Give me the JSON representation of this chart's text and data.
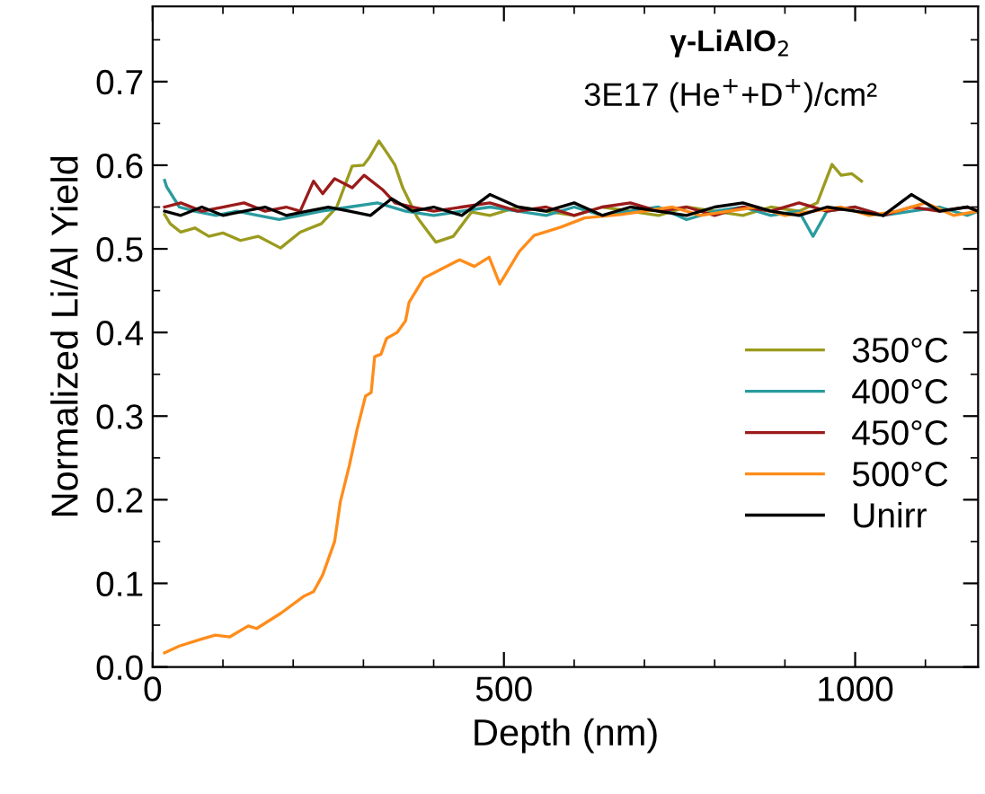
{
  "chart_data": {
    "type": "line",
    "title": "γ-LiAlO$_{2}$",
    "subtitle": "3E17 (He$^{+}$+D$^{+}$)/cm²",
    "xlabel": "Depth (nm)",
    "ylabel": "Normalized Li/Al Yield",
    "xlim": [
      0,
      1175
    ],
    "ylim": [
      0,
      0.79
    ],
    "xticks": [
      0,
      500,
      1000
    ],
    "yticks": [
      {
        "value": 0,
        "label": "0.0"
      },
      0.1,
      0.2,
      0.3,
      0.4,
      0.5,
      0.6,
      0.7
    ],
    "grid": false,
    "legend": "right",
    "marker": "none",
    "line_style": "solid",
    "series": [
      {
        "name": "350°C",
        "color": "#9b9b1f",
        "x": [
          17,
          25,
          40,
          60,
          80,
          100,
          125,
          150,
          182,
          210,
          240,
          262,
          284,
          300,
          309,
          322,
          335,
          345,
          356,
          377,
          403,
          428,
          454,
          480,
          520,
          560,
          600,
          640,
          680,
          720,
          760,
          800,
          840,
          880,
          920,
          946,
          967,
          980,
          995,
          1009
        ],
        "values": [
          0.541,
          0.53,
          0.52,
          0.525,
          0.515,
          0.519,
          0.51,
          0.515,
          0.501,
          0.52,
          0.53,
          0.55,
          0.599,
          0.6,
          0.61,
          0.629,
          0.613,
          0.6,
          0.573,
          0.537,
          0.508,
          0.515,
          0.544,
          0.54,
          0.55,
          0.545,
          0.54,
          0.55,
          0.545,
          0.54,
          0.55,
          0.545,
          0.54,
          0.55,
          0.545,
          0.555,
          0.601,
          0.588,
          0.59,
          0.581
        ]
      },
      {
        "name": "400°C",
        "color": "#2a9b9e",
        "x": [
          17,
          20,
          38,
          60,
          90,
          120,
          150,
          180,
          210,
          240,
          280,
          320,
          360,
          400,
          440,
          480,
          520,
          560,
          600,
          640,
          680,
          720,
          760,
          800,
          840,
          880,
          920,
          940,
          960,
          1000,
          1040,
          1080,
          1120,
          1160,
          1175
        ],
        "values": [
          0.582,
          0.574,
          0.55,
          0.545,
          0.54,
          0.545,
          0.54,
          0.535,
          0.54,
          0.545,
          0.55,
          0.555,
          0.545,
          0.54,
          0.545,
          0.55,
          0.545,
          0.54,
          0.55,
          0.54,
          0.545,
          0.55,
          0.535,
          0.545,
          0.55,
          0.54,
          0.545,
          0.515,
          0.545,
          0.55,
          0.54,
          0.545,
          0.55,
          0.54,
          0.545
        ]
      },
      {
        "name": "450°C",
        "color": "#9b1b1b",
        "x": [
          17,
          40,
          70,
          100,
          130,
          160,
          190,
          210,
          229,
          242,
          259,
          284,
          301,
          327,
          345,
          370,
          400,
          440,
          480,
          520,
          560,
          600,
          640,
          680,
          720,
          760,
          800,
          840,
          880,
          920,
          960,
          1000,
          1040,
          1080,
          1120,
          1160,
          1175
        ],
        "values": [
          0.55,
          0.555,
          0.545,
          0.55,
          0.555,
          0.545,
          0.55,
          0.545,
          0.581,
          0.566,
          0.584,
          0.573,
          0.588,
          0.571,
          0.555,
          0.55,
          0.545,
          0.55,
          0.555,
          0.545,
          0.55,
          0.54,
          0.55,
          0.555,
          0.545,
          0.55,
          0.54,
          0.55,
          0.545,
          0.555,
          0.545,
          0.55,
          0.54,
          0.55,
          0.545,
          0.55,
          0.545
        ]
      },
      {
        "name": "500°C",
        "color": "#ff8c1a",
        "x": [
          17,
          38,
          68,
          89,
          110,
          136,
          148,
          182,
          216,
          229,
          242,
          259,
          267,
          280,
          291,
          303,
          311,
          316,
          325,
          333,
          348,
          360,
          365,
          386,
          411,
          437,
          458,
          479,
          494,
          522,
          543,
          581,
          615,
          666,
          700,
          740,
          780,
          820,
          860,
          900,
          940,
          980,
          1020,
          1060,
          1100,
          1140,
          1175
        ],
        "values": [
          0.017,
          0.025,
          0.033,
          0.038,
          0.036,
          0.049,
          0.046,
          0.064,
          0.085,
          0.09,
          0.11,
          0.15,
          0.197,
          0.241,
          0.284,
          0.324,
          0.328,
          0.371,
          0.374,
          0.393,
          0.4,
          0.414,
          0.436,
          0.465,
          0.476,
          0.487,
          0.479,
          0.49,
          0.458,
          0.497,
          0.516,
          0.526,
          0.537,
          0.541,
          0.545,
          0.55,
          0.54,
          0.545,
          0.55,
          0.54,
          0.545,
          0.55,
          0.54,
          0.545,
          0.555,
          0.54,
          0.545
        ]
      },
      {
        "name": "Unirr",
        "color": "#000000",
        "x": [
          17,
          40,
          70,
          100,
          130,
          160,
          190,
          220,
          250,
          280,
          310,
          340,
          370,
          400,
          440,
          480,
          520,
          560,
          600,
          640,
          680,
          720,
          760,
          800,
          840,
          880,
          920,
          960,
          1000,
          1040,
          1080,
          1120,
          1160,
          1175
        ],
        "values": [
          0.545,
          0.54,
          0.55,
          0.54,
          0.545,
          0.55,
          0.54,
          0.545,
          0.55,
          0.545,
          0.54,
          0.56,
          0.545,
          0.55,
          0.54,
          0.565,
          0.55,
          0.545,
          0.555,
          0.54,
          0.55,
          0.545,
          0.54,
          0.55,
          0.555,
          0.545,
          0.54,
          0.55,
          0.545,
          0.54,
          0.565,
          0.545,
          0.55,
          0.545
        ]
      }
    ]
  }
}
